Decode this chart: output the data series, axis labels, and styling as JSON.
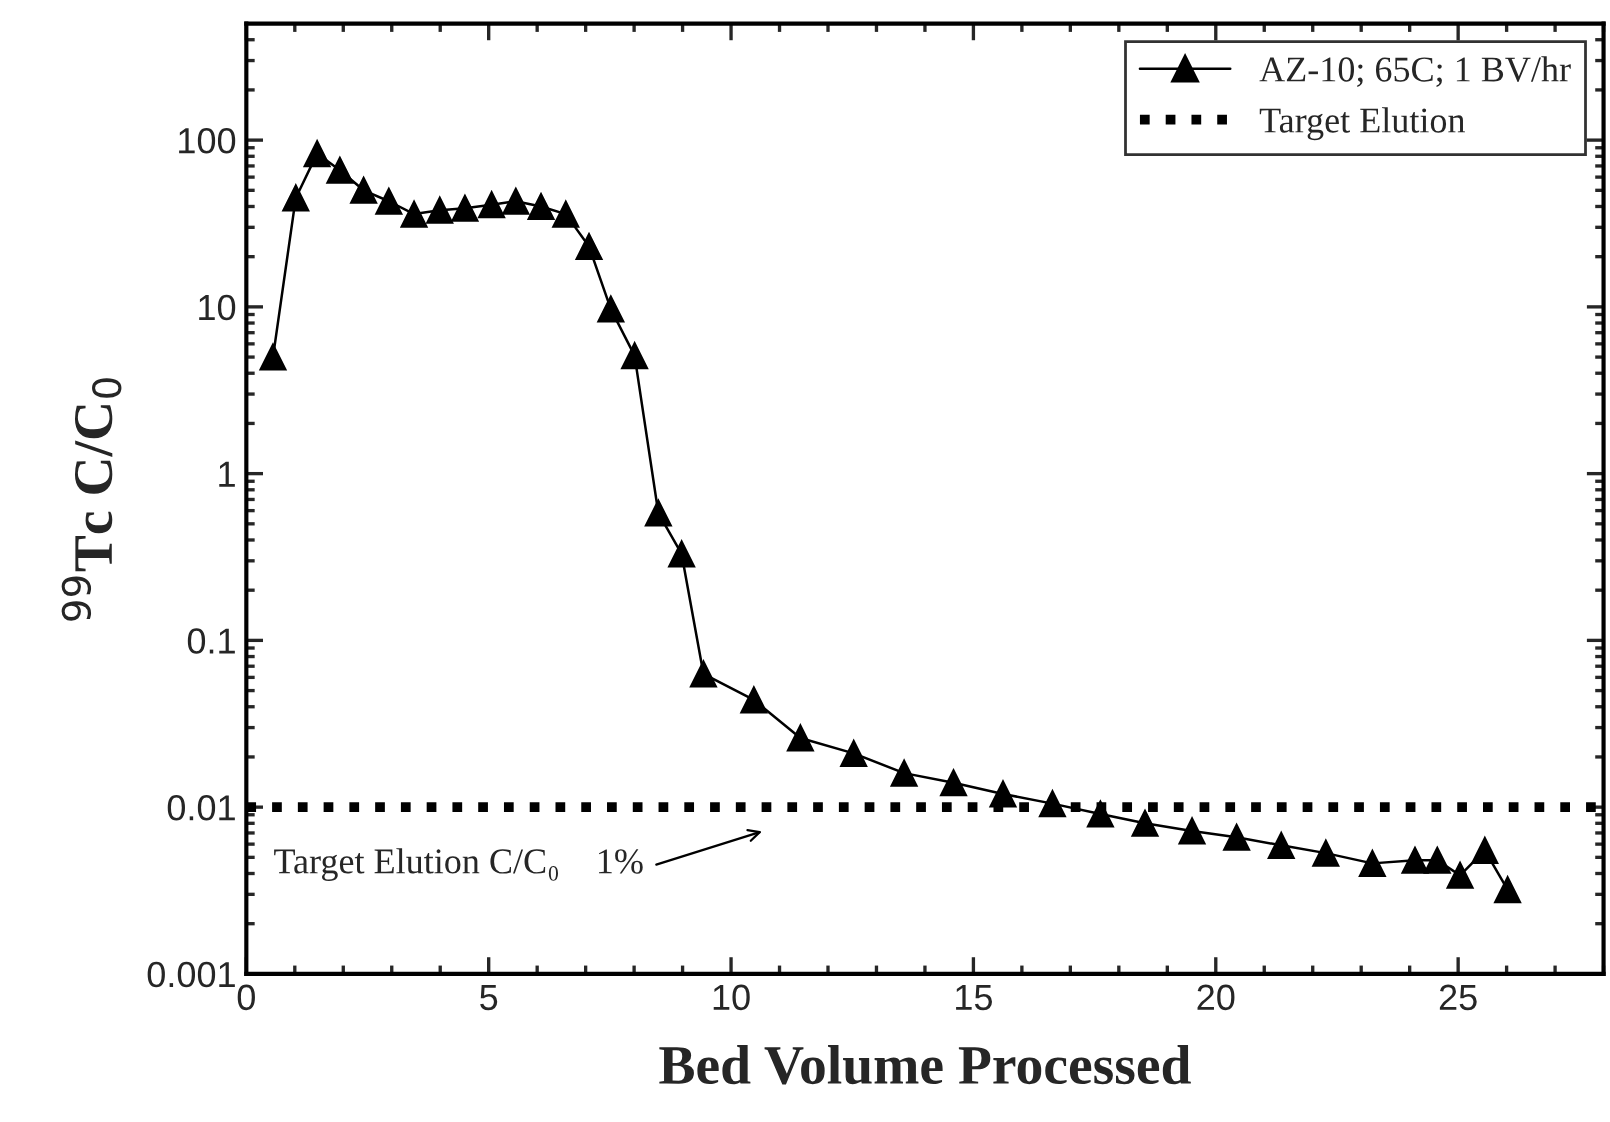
{
  "chart_data": {
    "type": "line",
    "xlabel": "Bed Volume Processed",
    "ylabel": "$^{99}$Tc C/C$_{0}$",
    "x": [
      0.55,
      1.02,
      1.46,
      1.93,
      2.42,
      2.94,
      3.46,
      3.99,
      4.51,
      5.06,
      5.56,
      6.08,
      6.59,
      7.07,
      7.52,
      8.01,
      8.5,
      8.98,
      9.43,
      10.47,
      11.43,
      12.53,
      13.57,
      14.59,
      15.61,
      16.63,
      17.62,
      18.54,
      19.51,
      20.43,
      21.35,
      22.27,
      23.23,
      24.11,
      24.57,
      25.04,
      25.55,
      26.02
    ],
    "series": [
      {
        "name": "AZ-10; 65C; 1 BV/hr",
        "color": "#000000",
        "values": [
          5.0,
          45,
          83,
          66,
          50,
          43,
          36,
          38,
          39,
          41,
          43,
          40,
          36,
          23,
          9.7,
          5.1,
          0.58,
          0.33,
          0.063,
          0.044,
          0.026,
          0.021,
          0.016,
          0.014,
          0.012,
          0.0105,
          0.0091,
          0.008,
          0.0072,
          0.0066,
          0.0059,
          0.0053,
          0.0046,
          0.0048,
          0.0048,
          0.0039,
          0.0055,
          0.0032
        ]
      }
    ],
    "marker": "triangle",
    "line_style": "solid",
    "ref_lines": [
      {
        "axis": "y",
        "value": 0.01,
        "label": "Target Elution",
        "color": "#000000",
        "line_style": "dotted"
      }
    ],
    "annotations": [
      "Target Elution C/C₀    1%"
    ],
    "log": "y",
    "xlim": [
      0,
      28
    ],
    "ylim": [
      0.001,
      500
    ],
    "xticks": [
      0,
      5,
      10,
      15,
      20,
      25
    ],
    "yticks": [
      0.001,
      0.01,
      0.1,
      1,
      10,
      100
    ],
    "legend": "top right",
    "grid": false
  }
}
